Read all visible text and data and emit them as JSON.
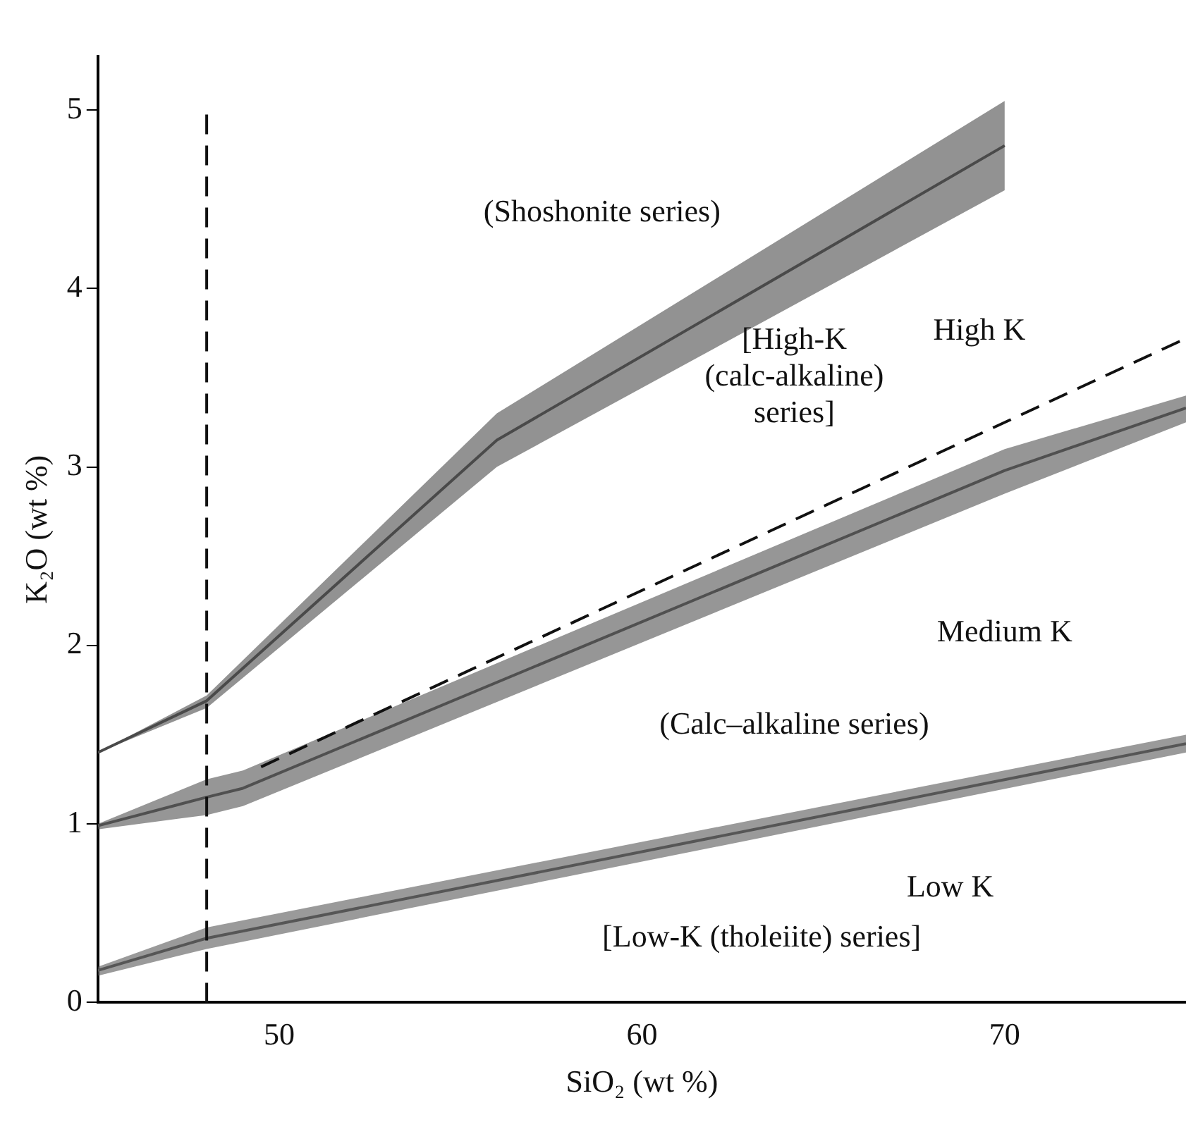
{
  "chart_data": {
    "type": "line",
    "xlabel": "SiO₂ (wt %)",
    "ylabel": "K₂O (wt %)",
    "xlim": [
      45,
      75
    ],
    "xticks": [
      50,
      60,
      70
    ],
    "ylim": [
      0,
      5.3
    ],
    "yticks": [
      0,
      1,
      2,
      3,
      4,
      5
    ],
    "grid": false,
    "legend": false,
    "marker": "none",
    "series": [
      {
        "color": "#4a4a4a",
        "x": [
          45,
          48,
          56,
          70
        ],
        "values": [
          1.4,
          1.69,
          3.15,
          4.8
        ],
        "lower": [
          1.4,
          1.65,
          3.0,
          4.55
        ],
        "upper": [
          1.4,
          1.72,
          3.3,
          5.05
        ]
      },
      {
        "color": "#505050",
        "x": [
          45,
          48,
          49,
          70,
          75
        ],
        "values": [
          0.99,
          1.15,
          1.2,
          2.98,
          3.33
        ],
        "lower": [
          0.97,
          1.05,
          1.1,
          2.85,
          3.25
        ],
        "upper": [
          1.0,
          1.25,
          1.3,
          3.1,
          3.4
        ]
      },
      {
        "color": "#565656",
        "x": [
          45,
          48,
          75
        ],
        "values": [
          0.18,
          0.36,
          1.45
        ],
        "lower": [
          0.15,
          0.3,
          1.4
        ],
        "upper": [
          0.2,
          0.42,
          1.5
        ]
      },
      {
        "color": "#111111",
        "line_style": "dashed",
        "x": [
          49.5,
          75
        ],
        "values": [
          1.32,
          3.72
        ]
      }
    ],
    "ref_lines": [
      {
        "axis": "x",
        "value": 48,
        "color": "#111111",
        "line_style": "dashed"
      }
    ],
    "annotations": [
      "(Shoshonite series)",
      "High K",
      "[High-K\n(calc-alkaline)\nseries]",
      "Medium K",
      "(Calc–alkaline series)",
      "Low K",
      "[Low-K (tholeiite) series]"
    ]
  }
}
